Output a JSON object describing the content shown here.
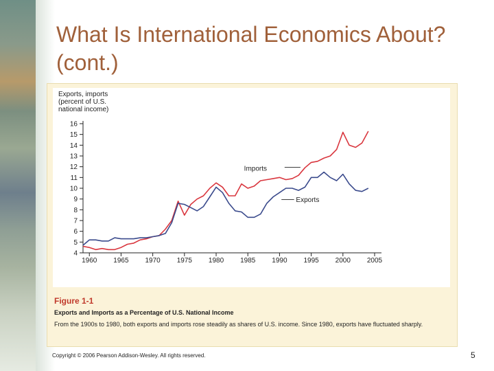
{
  "slide": {
    "title": "What Is International Economics About? (cont.)",
    "copyright": "Copyright © 2006 Pearson Addison-Wesley. All rights reserved.",
    "page_number": "5"
  },
  "figure": {
    "label": "Figure 1-1",
    "caption_title": "Exports and Imports as a Percentage of U.S. National Income",
    "caption": "From the 1900s to 1980, both exports and imports rose steadily as shares of U.S. income. Since 1980, exports have fluctuated sharply."
  },
  "chart_data": {
    "type": "line",
    "ylabel_lines": [
      "Exports, imports",
      "(percent of U.S.",
      "national income)"
    ],
    "xlabel": "",
    "xlim": [
      1959,
      2005
    ],
    "ylim": [
      4,
      16
    ],
    "x_ticks": [
      1960,
      1965,
      1970,
      1975,
      1980,
      1985,
      1990,
      1995,
      2000,
      2005
    ],
    "y_ticks": [
      4,
      5,
      6,
      7,
      8,
      9,
      10,
      11,
      12,
      13,
      14,
      15,
      16
    ],
    "grid": false,
    "legend": "inline labels",
    "colors": {
      "imports": "#d9363e",
      "exports": "#3a4a8c"
    },
    "series": [
      {
        "name": "Imports",
        "x": [
          1959,
          1960,
          1961,
          1962,
          1963,
          1964,
          1965,
          1966,
          1967,
          1968,
          1969,
          1970,
          1971,
          1972,
          1973,
          1974,
          1975,
          1976,
          1977,
          1978,
          1979,
          1980,
          1981,
          1982,
          1983,
          1984,
          1985,
          1986,
          1987,
          1988,
          1989,
          1990,
          1991,
          1992,
          1993,
          1994,
          1995,
          1996,
          1997,
          1998,
          1999,
          2000,
          2001,
          2002,
          2003,
          2004
        ],
        "values": [
          4.6,
          4.5,
          4.3,
          4.4,
          4.3,
          4.3,
          4.5,
          4.8,
          4.9,
          5.2,
          5.3,
          5.5,
          5.6,
          6.2,
          7.0,
          8.8,
          7.5,
          8.5,
          9.0,
          9.3,
          10.0,
          10.5,
          10.1,
          9.3,
          9.3,
          10.4,
          10.0,
          10.2,
          10.7,
          10.8,
          10.9,
          11.0,
          10.8,
          10.9,
          11.2,
          11.9,
          12.4,
          12.5,
          12.8,
          13.0,
          13.6,
          15.2,
          14.0,
          13.8,
          14.2,
          15.3
        ]
      },
      {
        "name": "Exports",
        "x": [
          1959,
          1960,
          1961,
          1962,
          1963,
          1964,
          1965,
          1966,
          1967,
          1968,
          1969,
          1970,
          1971,
          1972,
          1973,
          1974,
          1975,
          1976,
          1977,
          1978,
          1979,
          1980,
          1981,
          1982,
          1983,
          1984,
          1985,
          1986,
          1987,
          1988,
          1989,
          1990,
          1991,
          1992,
          1993,
          1994,
          1995,
          1996,
          1997,
          1998,
          1999,
          2000,
          2001,
          2002,
          2003,
          2004
        ],
        "values": [
          4.7,
          5.2,
          5.2,
          5.1,
          5.1,
          5.4,
          5.3,
          5.3,
          5.3,
          5.4,
          5.4,
          5.5,
          5.6,
          5.8,
          6.8,
          8.6,
          8.5,
          8.2,
          7.9,
          8.3,
          9.2,
          10.1,
          9.6,
          8.6,
          7.9,
          7.8,
          7.3,
          7.3,
          7.6,
          8.6,
          9.2,
          9.6,
          10.0,
          10.0,
          9.8,
          10.1,
          11.0,
          11.0,
          11.5,
          11.0,
          10.7,
          11.3,
          10.4,
          9.8,
          9.7,
          10.0
        ]
      }
    ],
    "annotations": [
      {
        "text": "Imports",
        "x": 1989,
        "y": 11.9
      },
      {
        "text": "Exports",
        "x": 1992,
        "y": 8.9
      }
    ]
  }
}
